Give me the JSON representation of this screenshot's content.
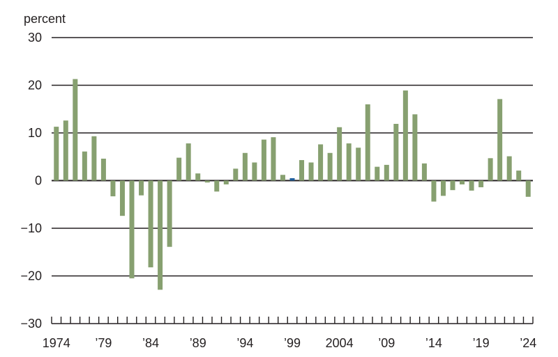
{
  "chart_data": {
    "type": "bar",
    "ylabel": "percent",
    "ylim": [
      -30,
      30
    ],
    "yticks": [
      30,
      20,
      10,
      0,
      -10,
      -20,
      -30
    ],
    "ytick_labels": [
      "30",
      "20",
      "10",
      "0",
      "−10",
      "−20",
      "−30"
    ],
    "grid": true,
    "years": [
      1974,
      1975,
      1976,
      1977,
      1978,
      1979,
      1980,
      1981,
      1982,
      1983,
      1984,
      1985,
      1986,
      1987,
      1988,
      1989,
      1990,
      1991,
      1992,
      1993,
      1994,
      1995,
      1996,
      1997,
      1998,
      1999,
      2000,
      2001,
      2002,
      2003,
      2004,
      2005,
      2006,
      2007,
      2008,
      2009,
      2010,
      2011,
      2012,
      2013,
      2014,
      2015,
      2016,
      2017,
      2018,
      2019,
      2020,
      2021,
      2022,
      2023,
      2024
    ],
    "values": [
      11.3,
      12.6,
      21.3,
      6.1,
      9.3,
      4.6,
      -3.3,
      -7.4,
      -20.5,
      -3.1,
      -18.2,
      -22.9,
      -13.9,
      4.8,
      7.8,
      1.5,
      -0.4,
      -2.3,
      -0.8,
      2.5,
      5.8,
      3.8,
      8.6,
      9.1,
      1.2,
      0.5,
      4.3,
      3.8,
      7.6,
      5.8,
      11.2,
      7.8,
      6.9,
      16.0,
      2.9,
      3.3,
      11.9,
      18.9,
      13.9,
      3.6,
      -4.4,
      -3.2,
      -2.0,
      -0.8,
      -2.1,
      -1.4,
      4.7,
      17.1,
      5.1,
      2.1,
      -3.4
    ],
    "highlight_year": 1999,
    "colors": {
      "bar": "#87a070",
      "highlight": "#1f5f9e",
      "axis": "#231f20",
      "grid": "#231f20"
    },
    "xtick_labels": [
      {
        "year": 1974,
        "label": "1974"
      },
      {
        "year": 1979,
        "label": "’79"
      },
      {
        "year": 1984,
        "label": "’84"
      },
      {
        "year": 1989,
        "label": "’89"
      },
      {
        "year": 1994,
        "label": "’94"
      },
      {
        "year": 1999,
        "label": "’99"
      },
      {
        "year": 2004,
        "label": "2004"
      },
      {
        "year": 2009,
        "label": "’09"
      },
      {
        "year": 2014,
        "label": "’14"
      },
      {
        "year": 2019,
        "label": "’19"
      },
      {
        "year": 2024,
        "label": "’24"
      }
    ]
  }
}
